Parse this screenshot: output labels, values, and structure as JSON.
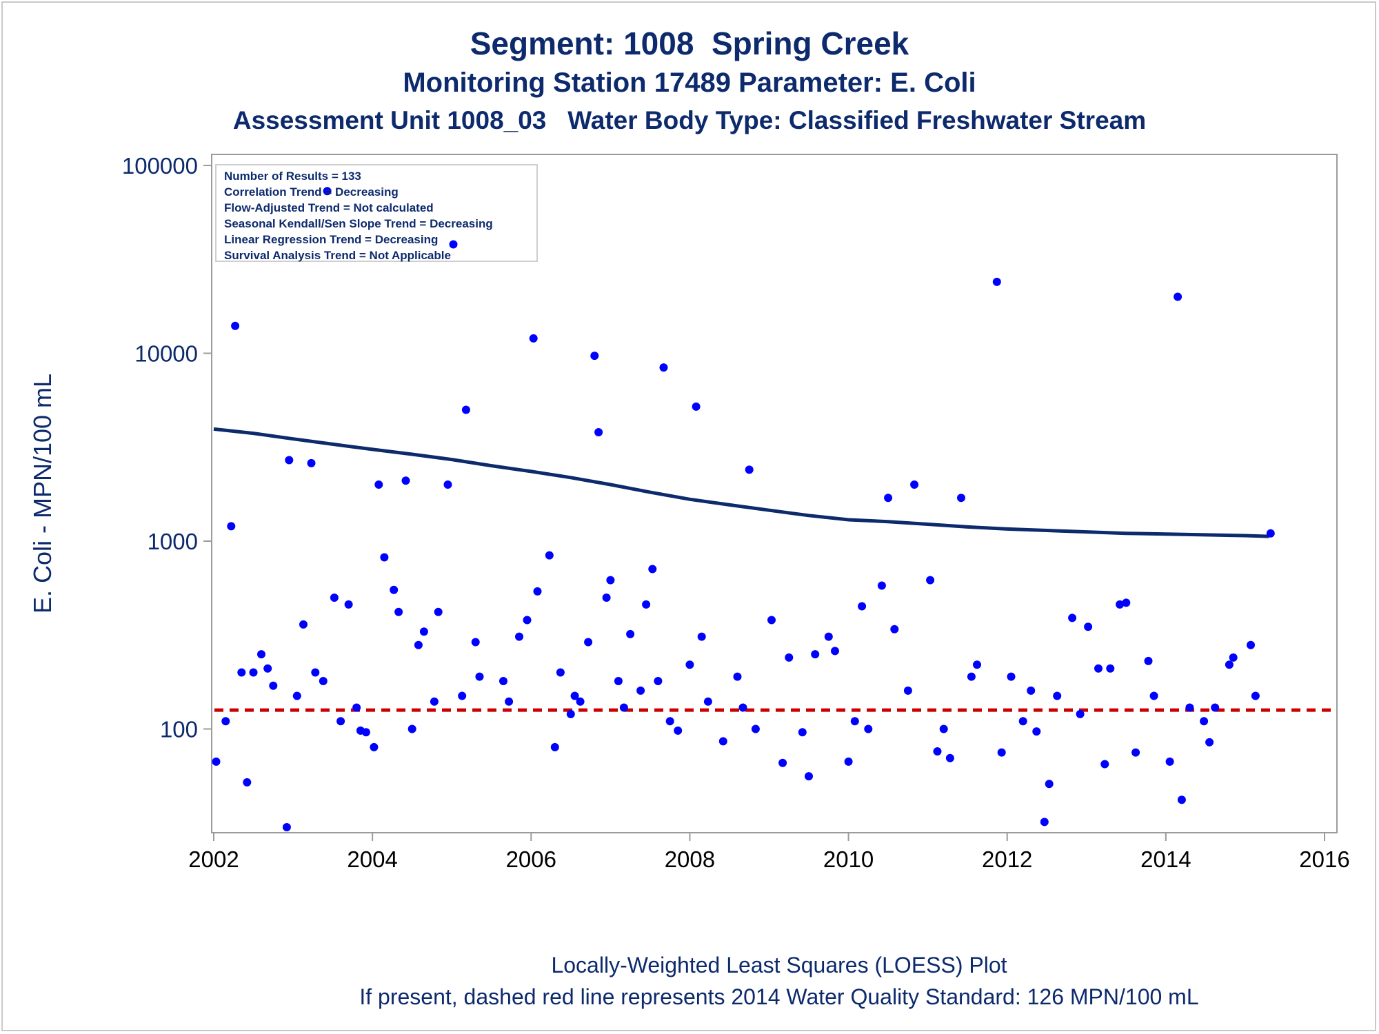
{
  "header": {
    "title": "Segment: 1008  Spring Creek",
    "subtitle1": "Monitoring Station 17489 Parameter: E. Coli",
    "subtitle2": "Assessment Unit 1008_03   Water Body Type: Classified Freshwater Stream"
  },
  "legend": {
    "lines": [
      "Number of Results = 133",
      "Correlation Trend = Decreasing",
      "Flow-Adjusted Trend = Not calculated",
      "Seasonal Kendall/Sen Slope Trend = Decreasing",
      "Linear Regression Trend = Decreasing",
      "Survival Analysis Trend = Not Applicable"
    ]
  },
  "footer": {
    "line1": "Locally-Weighted Least Squares (LOESS) Plot",
    "line2": "If present, dashed red line represents 2014 Water Quality Standard: 126 MPN/100 mL"
  },
  "chart_data": {
    "type": "scatter",
    "ylabel": "E. Coli - MPN/100 mL",
    "xlabel": "",
    "y_scale": "log",
    "xlim": [
      2002,
      2016
    ],
    "ylim": [
      30,
      100000
    ],
    "x_ticks": [
      "2002",
      "2004",
      "2006",
      "2008",
      "2010",
      "2012",
      "2014",
      "2016"
    ],
    "y_ticks": [
      "100",
      "1000",
      "10000",
      "100000"
    ],
    "grid": false,
    "colors": {
      "points": "#0000ff",
      "loess": "#0d2a6d",
      "standard": "#cc0000",
      "text": "#0d2a6d"
    },
    "standard_line": {
      "value": 126,
      "style": "dashed"
    },
    "points": [
      [
        2002.03,
        67
      ],
      [
        2002.15,
        110
      ],
      [
        2002.22,
        1200
      ],
      [
        2002.27,
        14000
      ],
      [
        2002.35,
        200
      ],
      [
        2002.42,
        52
      ],
      [
        2002.5,
        200
      ],
      [
        2002.6,
        250
      ],
      [
        2002.68,
        210
      ],
      [
        2002.75,
        170
      ],
      [
        2002.92,
        30
      ],
      [
        2002.95,
        2700
      ],
      [
        2003.05,
        150
      ],
      [
        2003.13,
        360
      ],
      [
        2003.23,
        2600
      ],
      [
        2003.28,
        200
      ],
      [
        2003.38,
        180
      ],
      [
        2003.43,
        73000
      ],
      [
        2003.52,
        500
      ],
      [
        2003.6,
        110
      ],
      [
        2003.7,
        460
      ],
      [
        2003.8,
        130
      ],
      [
        2003.85,
        98
      ],
      [
        2003.92,
        96
      ],
      [
        2004.02,
        80
      ],
      [
        2004.08,
        2000
      ],
      [
        2004.15,
        820
      ],
      [
        2004.27,
        550
      ],
      [
        2004.33,
        420
      ],
      [
        2004.42,
        2100
      ],
      [
        2004.5,
        100
      ],
      [
        2004.58,
        280
      ],
      [
        2004.65,
        330
      ],
      [
        2004.78,
        140
      ],
      [
        2004.83,
        420
      ],
      [
        2004.95,
        2000
      ],
      [
        2005.02,
        38000
      ],
      [
        2005.13,
        150
      ],
      [
        2005.18,
        5000
      ],
      [
        2005.3,
        290
      ],
      [
        2005.35,
        190
      ],
      [
        2005.65,
        180
      ],
      [
        2005.72,
        140
      ],
      [
        2005.85,
        310
      ],
      [
        2005.95,
        380
      ],
      [
        2006.03,
        12000
      ],
      [
        2006.08,
        540
      ],
      [
        2006.23,
        840
      ],
      [
        2006.3,
        80
      ],
      [
        2006.37,
        200
      ],
      [
        2006.5,
        120
      ],
      [
        2006.55,
        150
      ],
      [
        2006.62,
        140
      ],
      [
        2006.72,
        290
      ],
      [
        2006.8,
        9700
      ],
      [
        2006.85,
        3800
      ],
      [
        2006.95,
        500
      ],
      [
        2007.0,
        620
      ],
      [
        2007.1,
        180
      ],
      [
        2007.17,
        130
      ],
      [
        2007.25,
        320
      ],
      [
        2007.38,
        160
      ],
      [
        2007.45,
        460
      ],
      [
        2007.53,
        710
      ],
      [
        2007.6,
        180
      ],
      [
        2007.67,
        8400
      ],
      [
        2007.75,
        110
      ],
      [
        2007.85,
        98
      ],
      [
        2008.0,
        220
      ],
      [
        2008.08,
        5200
      ],
      [
        2008.15,
        310
      ],
      [
        2008.23,
        140
      ],
      [
        2008.42,
        86
      ],
      [
        2008.6,
        190
      ],
      [
        2008.67,
        130
      ],
      [
        2008.75,
        2400
      ],
      [
        2008.83,
        100
      ],
      [
        2009.03,
        380
      ],
      [
        2009.17,
        66
      ],
      [
        2009.25,
        240
      ],
      [
        2009.42,
        96
      ],
      [
        2009.5,
        56
      ],
      [
        2009.58,
        250
      ],
      [
        2009.75,
        310
      ],
      [
        2009.83,
        260
      ],
      [
        2010.0,
        67
      ],
      [
        2010.08,
        110
      ],
      [
        2010.17,
        450
      ],
      [
        2010.25,
        100
      ],
      [
        2010.42,
        580
      ],
      [
        2010.5,
        1700
      ],
      [
        2010.58,
        340
      ],
      [
        2010.75,
        160
      ],
      [
        2010.83,
        2000
      ],
      [
        2011.03,
        620
      ],
      [
        2011.12,
        76
      ],
      [
        2011.2,
        100
      ],
      [
        2011.28,
        70
      ],
      [
        2011.42,
        1700
      ],
      [
        2011.55,
        190
      ],
      [
        2011.62,
        220
      ],
      [
        2011.87,
        24000
      ],
      [
        2011.93,
        75
      ],
      [
        2012.05,
        190
      ],
      [
        2012.2,
        110
      ],
      [
        2012.3,
        160
      ],
      [
        2012.37,
        97
      ],
      [
        2012.47,
        32
      ],
      [
        2012.53,
        51
      ],
      [
        2012.63,
        150
      ],
      [
        2012.82,
        390
      ],
      [
        2012.92,
        120
      ],
      [
        2013.02,
        350
      ],
      [
        2013.15,
        210
      ],
      [
        2013.23,
        65
      ],
      [
        2013.3,
        210
      ],
      [
        2013.42,
        460
      ],
      [
        2013.5,
        470
      ],
      [
        2013.62,
        75
      ],
      [
        2013.78,
        230
      ],
      [
        2013.85,
        150
      ],
      [
        2014.05,
        67
      ],
      [
        2014.15,
        20000
      ],
      [
        2014.2,
        42
      ],
      [
        2014.3,
        130
      ],
      [
        2014.48,
        110
      ],
      [
        2014.55,
        85
      ],
      [
        2014.62,
        130
      ],
      [
        2014.8,
        220
      ],
      [
        2014.85,
        240
      ],
      [
        2015.07,
        280
      ],
      [
        2015.13,
        150
      ],
      [
        2015.32,
        1100
      ]
    ],
    "loess": [
      [
        2002.0,
        3950
      ],
      [
        2002.5,
        3750
      ],
      [
        2003.0,
        3500
      ],
      [
        2003.5,
        3280
      ],
      [
        2004.0,
        3080
      ],
      [
        2004.5,
        2900
      ],
      [
        2005.0,
        2720
      ],
      [
        2005.5,
        2520
      ],
      [
        2006.0,
        2350
      ],
      [
        2006.5,
        2180
      ],
      [
        2007.0,
        2000
      ],
      [
        2007.5,
        1820
      ],
      [
        2008.0,
        1670
      ],
      [
        2008.5,
        1560
      ],
      [
        2009.0,
        1460
      ],
      [
        2009.5,
        1370
      ],
      [
        2010.0,
        1300
      ],
      [
        2010.5,
        1270
      ],
      [
        2011.0,
        1230
      ],
      [
        2011.5,
        1190
      ],
      [
        2012.0,
        1160
      ],
      [
        2012.5,
        1140
      ],
      [
        2013.0,
        1120
      ],
      [
        2013.5,
        1100
      ],
      [
        2014.0,
        1090
      ],
      [
        2014.5,
        1080
      ],
      [
        2015.0,
        1070
      ],
      [
        2015.3,
        1060
      ]
    ]
  }
}
